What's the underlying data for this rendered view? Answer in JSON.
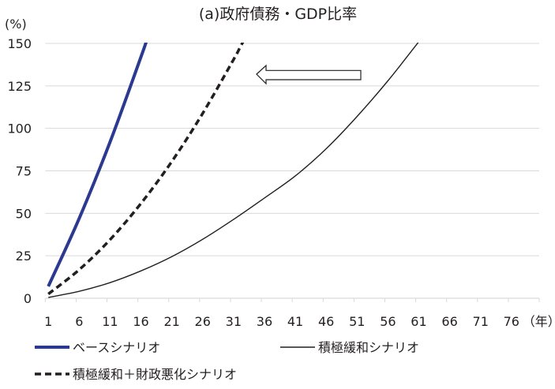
{
  "chart_data": {
    "type": "line",
    "title": "(a)政府債務・GDP比率",
    "ylabel": "(%)",
    "xlabel": "（年）",
    "ylim": [
      0,
      150
    ],
    "yticks": [
      0,
      25,
      50,
      75,
      100,
      125,
      150
    ],
    "xlim": [
      0.5,
      80.5
    ],
    "xticks": [
      1,
      6,
      11,
      16,
      21,
      26,
      31,
      36,
      41,
      46,
      51,
      56,
      61,
      66,
      71,
      76
    ],
    "grid": true,
    "legend_position": "bottom",
    "annotation": "left-arrow",
    "series": [
      {
        "name": "ベースシナリオ",
        "color": "#2b3990",
        "style": "thick",
        "points": [
          [
            1,
            7
          ],
          [
            6,
            47
          ],
          [
            11,
            92
          ],
          [
            16,
            142
          ],
          [
            17,
            152.6
          ]
        ]
      },
      {
        "name": "積極緩和シナリオ",
        "color": "#231f20",
        "style": "thin",
        "points": [
          [
            1,
            0.5
          ],
          [
            6,
            4.1
          ],
          [
            11,
            9.2
          ],
          [
            16,
            16.1
          ],
          [
            21,
            24.5
          ],
          [
            26,
            34.7
          ],
          [
            31,
            46.4
          ],
          [
            36,
            59
          ],
          [
            41,
            72
          ],
          [
            46,
            88
          ],
          [
            51,
            107
          ],
          [
            56,
            128
          ],
          [
            61,
            151
          ]
        ]
      },
      {
        "name": "積極緩和＋財政悪化シナリオ",
        "color": "#231f20",
        "style": "dashed",
        "points": [
          [
            1,
            2.5
          ],
          [
            6,
            16.8
          ],
          [
            11,
            34.5
          ],
          [
            16,
            55.8
          ],
          [
            21,
            80.5
          ],
          [
            26,
            108.8
          ],
          [
            31,
            140.5
          ],
          [
            32,
            147.3
          ],
          [
            33,
            154.2
          ]
        ]
      }
    ]
  }
}
